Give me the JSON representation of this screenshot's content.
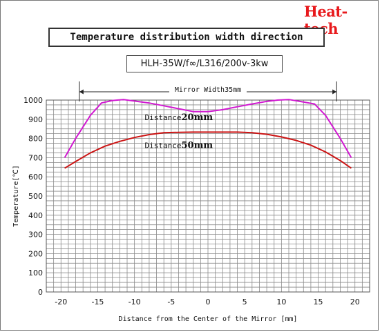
{
  "brand": {
    "name": "Heat-tech",
    "color": "#e8191c"
  },
  "chart_data": {
    "type": "line",
    "title": "Temperature distribution width direction",
    "subtitle": "HLH-35W/f∞/L316/200v-3kw",
    "xlabel": "Distance from the Center of the Mirror [mm]",
    "ylabel": "Temperature[℃]",
    "xlim": [
      -22,
      22
    ],
    "ylim": [
      0,
      1000
    ],
    "x_ticks": [
      -20,
      -15,
      -10,
      -5,
      0,
      5,
      10,
      15,
      20
    ],
    "y_ticks": [
      0,
      100,
      200,
      300,
      400,
      500,
      600,
      700,
      800,
      900,
      1000
    ],
    "grid": true,
    "annotations": {
      "mirror_width": {
        "text": "Mirror Width35mm",
        "from": -17.5,
        "to": 17.5
      }
    },
    "series": [
      {
        "label_prefix": "Distance",
        "label_value": "20mm",
        "color": "#d11ad1",
        "label_x": -8.6,
        "label_y": 895,
        "x": [
          -19.5,
          -18,
          -16,
          -14.5,
          -13,
          -11.5,
          -10,
          -8,
          -6,
          -4,
          -2,
          0,
          2,
          4,
          6,
          8,
          9.5,
          11,
          12.5,
          14.5,
          16,
          18,
          19.5
        ],
        "y": [
          700,
          800,
          920,
          985,
          998,
          1003,
          995,
          985,
          970,
          955,
          940,
          940,
          950,
          965,
          980,
          993,
          1000,
          1003,
          993,
          980,
          920,
          800,
          700
        ]
      },
      {
        "label_prefix": "Distance",
        "label_value": "50mm",
        "color": "#cc1414",
        "label_x": -8.6,
        "label_y": 750,
        "x": [
          -19.5,
          -18,
          -16,
          -14,
          -12,
          -10,
          -8,
          -6,
          -4,
          -2,
          0,
          2,
          4,
          6,
          8,
          10,
          12,
          14,
          16,
          18,
          19.5
        ],
        "y": [
          645,
          680,
          725,
          760,
          785,
          805,
          820,
          830,
          832,
          833,
          833,
          833,
          833,
          830,
          822,
          808,
          790,
          765,
          730,
          685,
          645
        ]
      }
    ]
  }
}
